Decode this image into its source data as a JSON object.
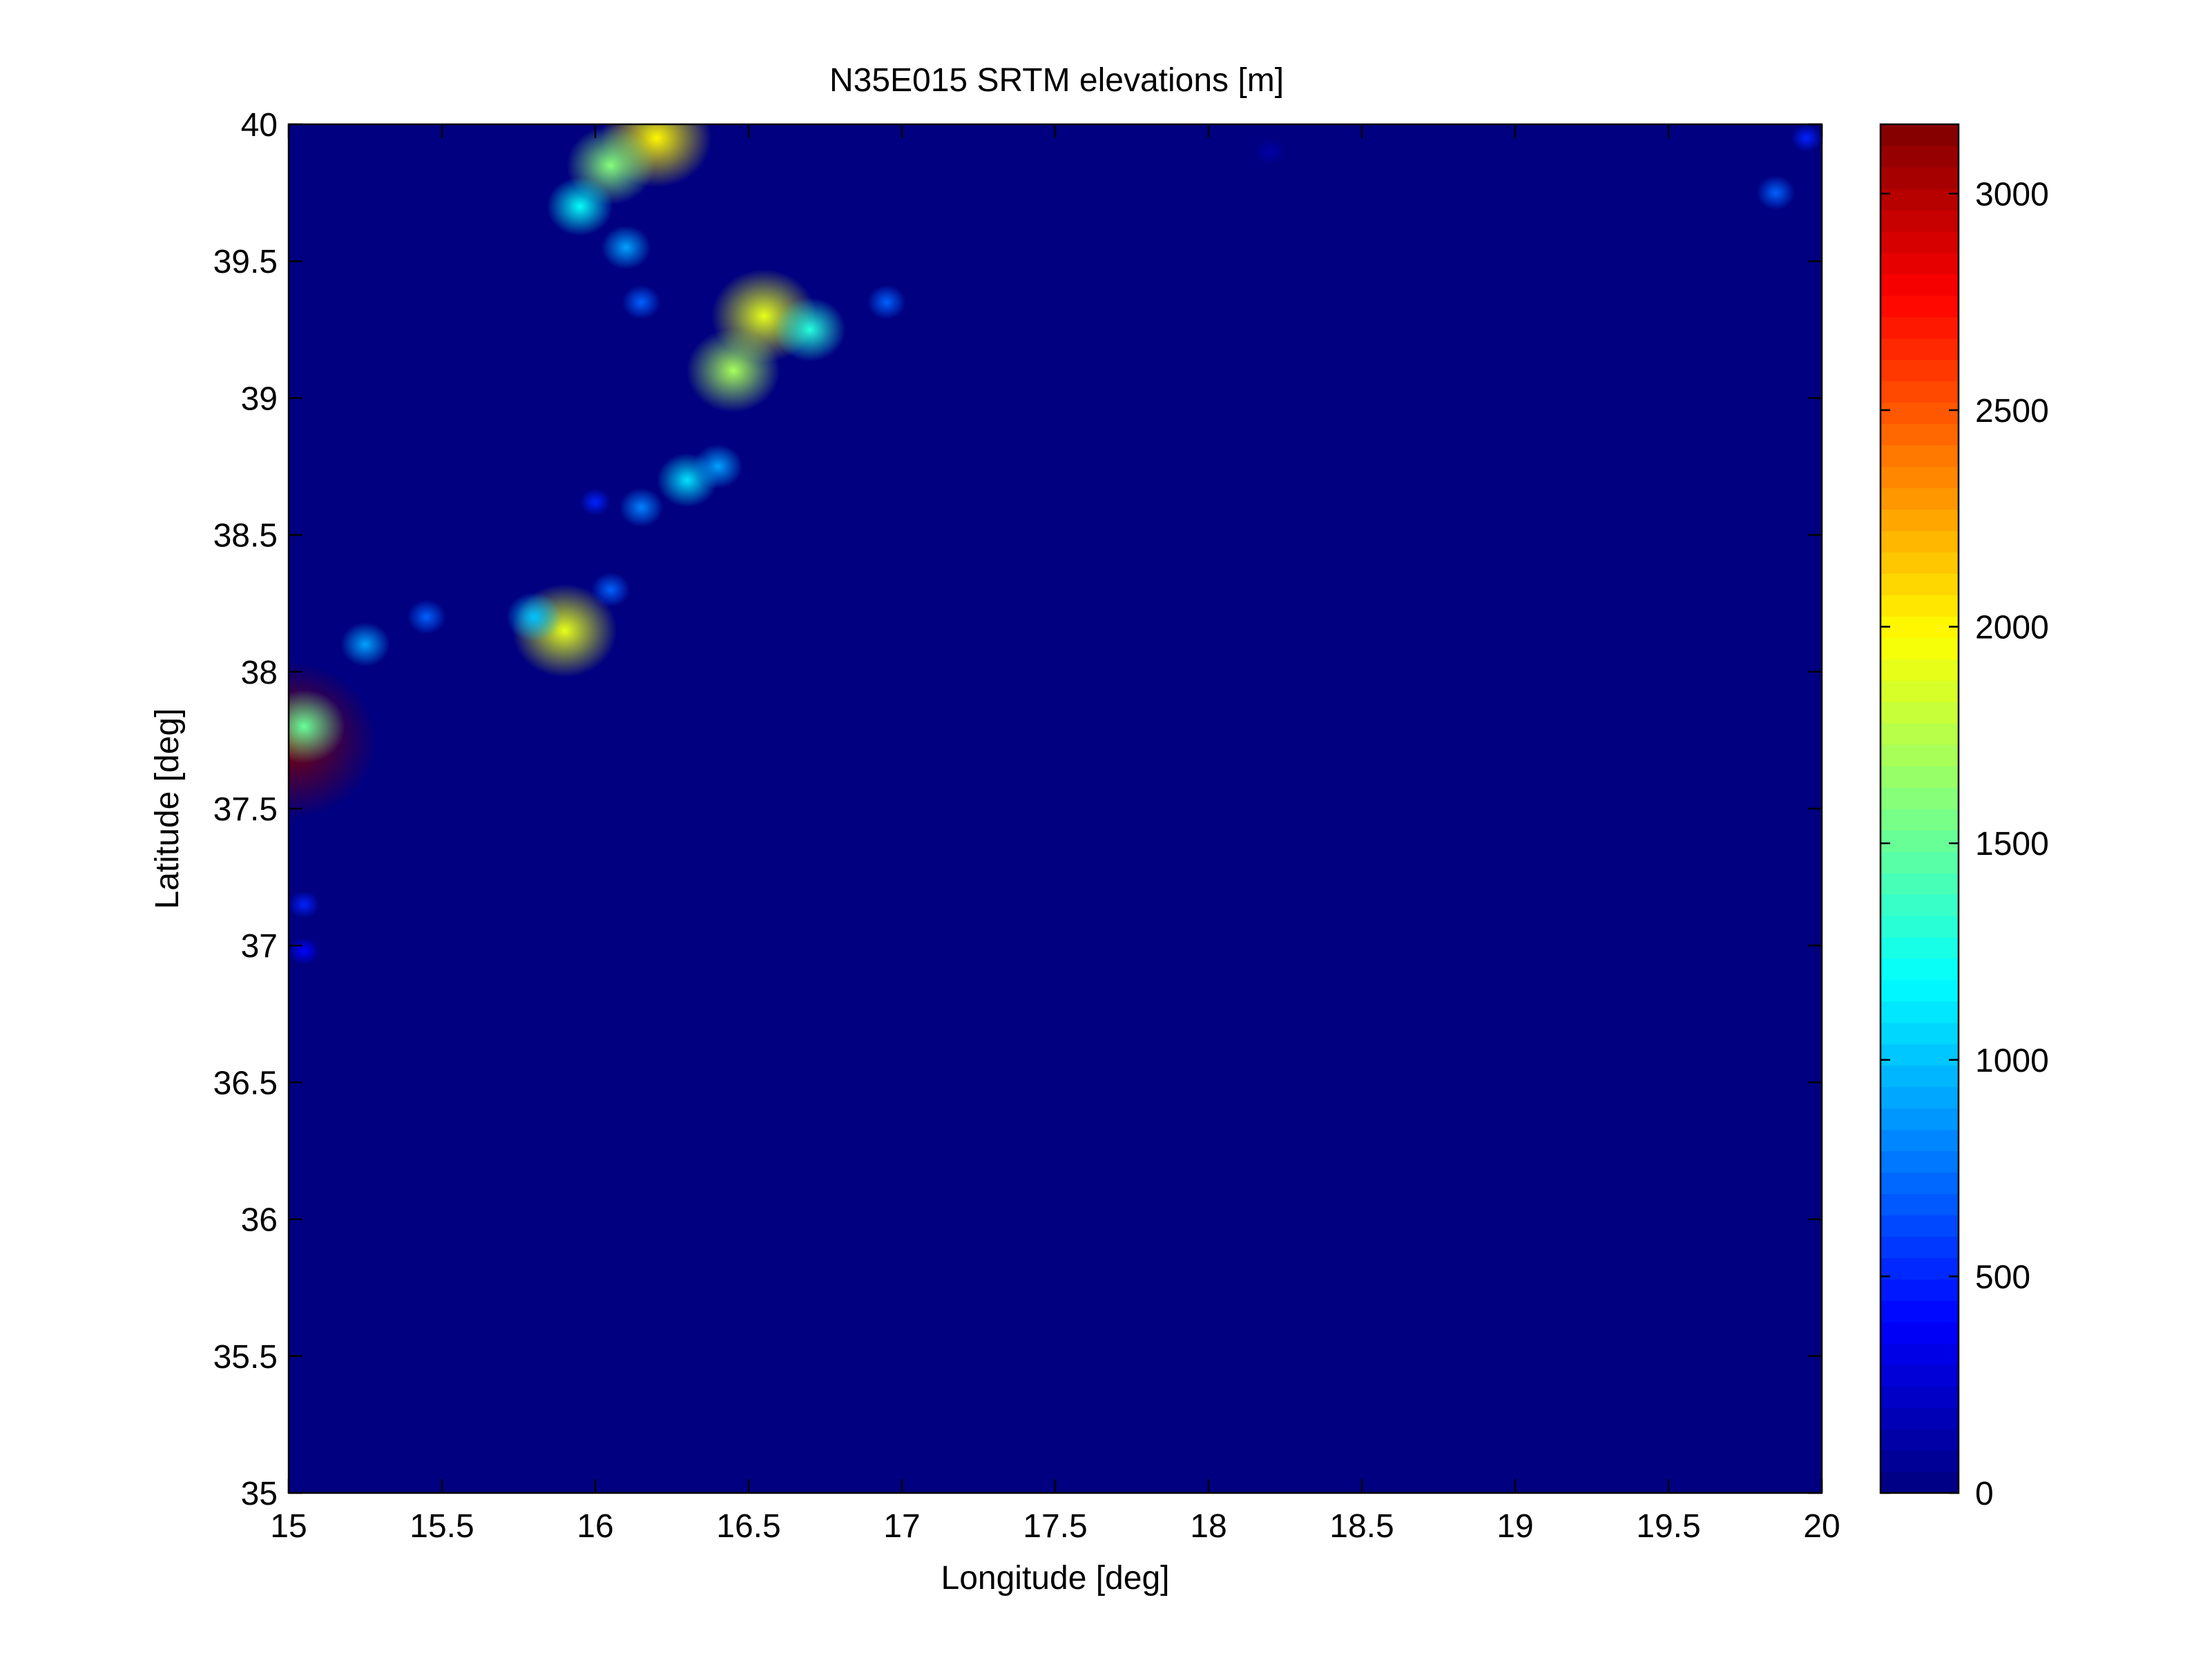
{
  "chart_data": {
    "type": "heatmap",
    "title": "N35E015 SRTM elevations [m]",
    "xlabel": "Longitude [deg]",
    "ylabel": "Latitude [deg]",
    "xlim": [
      15,
      20
    ],
    "ylim": [
      35,
      40
    ],
    "xticks": [
      "15",
      "15.5",
      "16",
      "16.5",
      "17",
      "17.5",
      "18",
      "18.5",
      "19",
      "19.5",
      "20"
    ],
    "yticks": [
      "35",
      "35.5",
      "36",
      "36.5",
      "37",
      "37.5",
      "38",
      "38.5",
      "39",
      "39.5",
      "40"
    ],
    "colorbar": {
      "colormap": "jet",
      "clim": [
        0,
        3160
      ],
      "ticks": [
        "0",
        "500",
        "1000",
        "1500",
        "2000",
        "2500",
        "3000"
      ],
      "tick_values": [
        0,
        500,
        1000,
        1500,
        2000,
        2500,
        3000
      ]
    },
    "background_value": 0,
    "grid": false,
    "features": [
      {
        "lon": 16.55,
        "lat": 39.3,
        "elevation": 1900
      },
      {
        "lon": 16.45,
        "lat": 39.1,
        "elevation": 1700
      },
      {
        "lon": 16.7,
        "lat": 39.25,
        "elevation": 1300
      },
      {
        "lon": 16.95,
        "lat": 39.35,
        "elevation": 700
      },
      {
        "lon": 16.2,
        "lat": 39.95,
        "elevation": 2000
      },
      {
        "lon": 16.05,
        "lat": 39.85,
        "elevation": 1600
      },
      {
        "lon": 15.95,
        "lat": 39.7,
        "elevation": 1200
      },
      {
        "lon": 16.1,
        "lat": 39.55,
        "elevation": 900
      },
      {
        "lon": 16.15,
        "lat": 39.35,
        "elevation": 700
      },
      {
        "lon": 16.3,
        "lat": 38.7,
        "elevation": 1100
      },
      {
        "lon": 16.4,
        "lat": 38.75,
        "elevation": 900
      },
      {
        "lon": 16.15,
        "lat": 38.6,
        "elevation": 800
      },
      {
        "lon": 15.9,
        "lat": 38.15,
        "elevation": 1900
      },
      {
        "lon": 15.8,
        "lat": 38.2,
        "elevation": 1000
      },
      {
        "lon": 16.05,
        "lat": 38.3,
        "elevation": 700
      },
      {
        "lon": 15.25,
        "lat": 38.1,
        "elevation": 900
      },
      {
        "lon": 15.45,
        "lat": 38.2,
        "elevation": 700
      },
      {
        "lon": 15.0,
        "lat": 37.75,
        "elevation": 3200
      },
      {
        "lon": 15.05,
        "lat": 37.8,
        "elevation": 1500
      },
      {
        "lon": 15.05,
        "lat": 37.15,
        "elevation": 500
      },
      {
        "lon": 15.05,
        "lat": 36.98,
        "elevation": 400
      },
      {
        "lon": 16.0,
        "lat": 38.62,
        "elevation": 500
      },
      {
        "lon": 19.85,
        "lat": 39.75,
        "elevation": 700
      },
      {
        "lon": 19.95,
        "lat": 39.95,
        "elevation": 500
      },
      {
        "lon": 18.2,
        "lat": 39.9,
        "elevation": 120
      }
    ]
  }
}
